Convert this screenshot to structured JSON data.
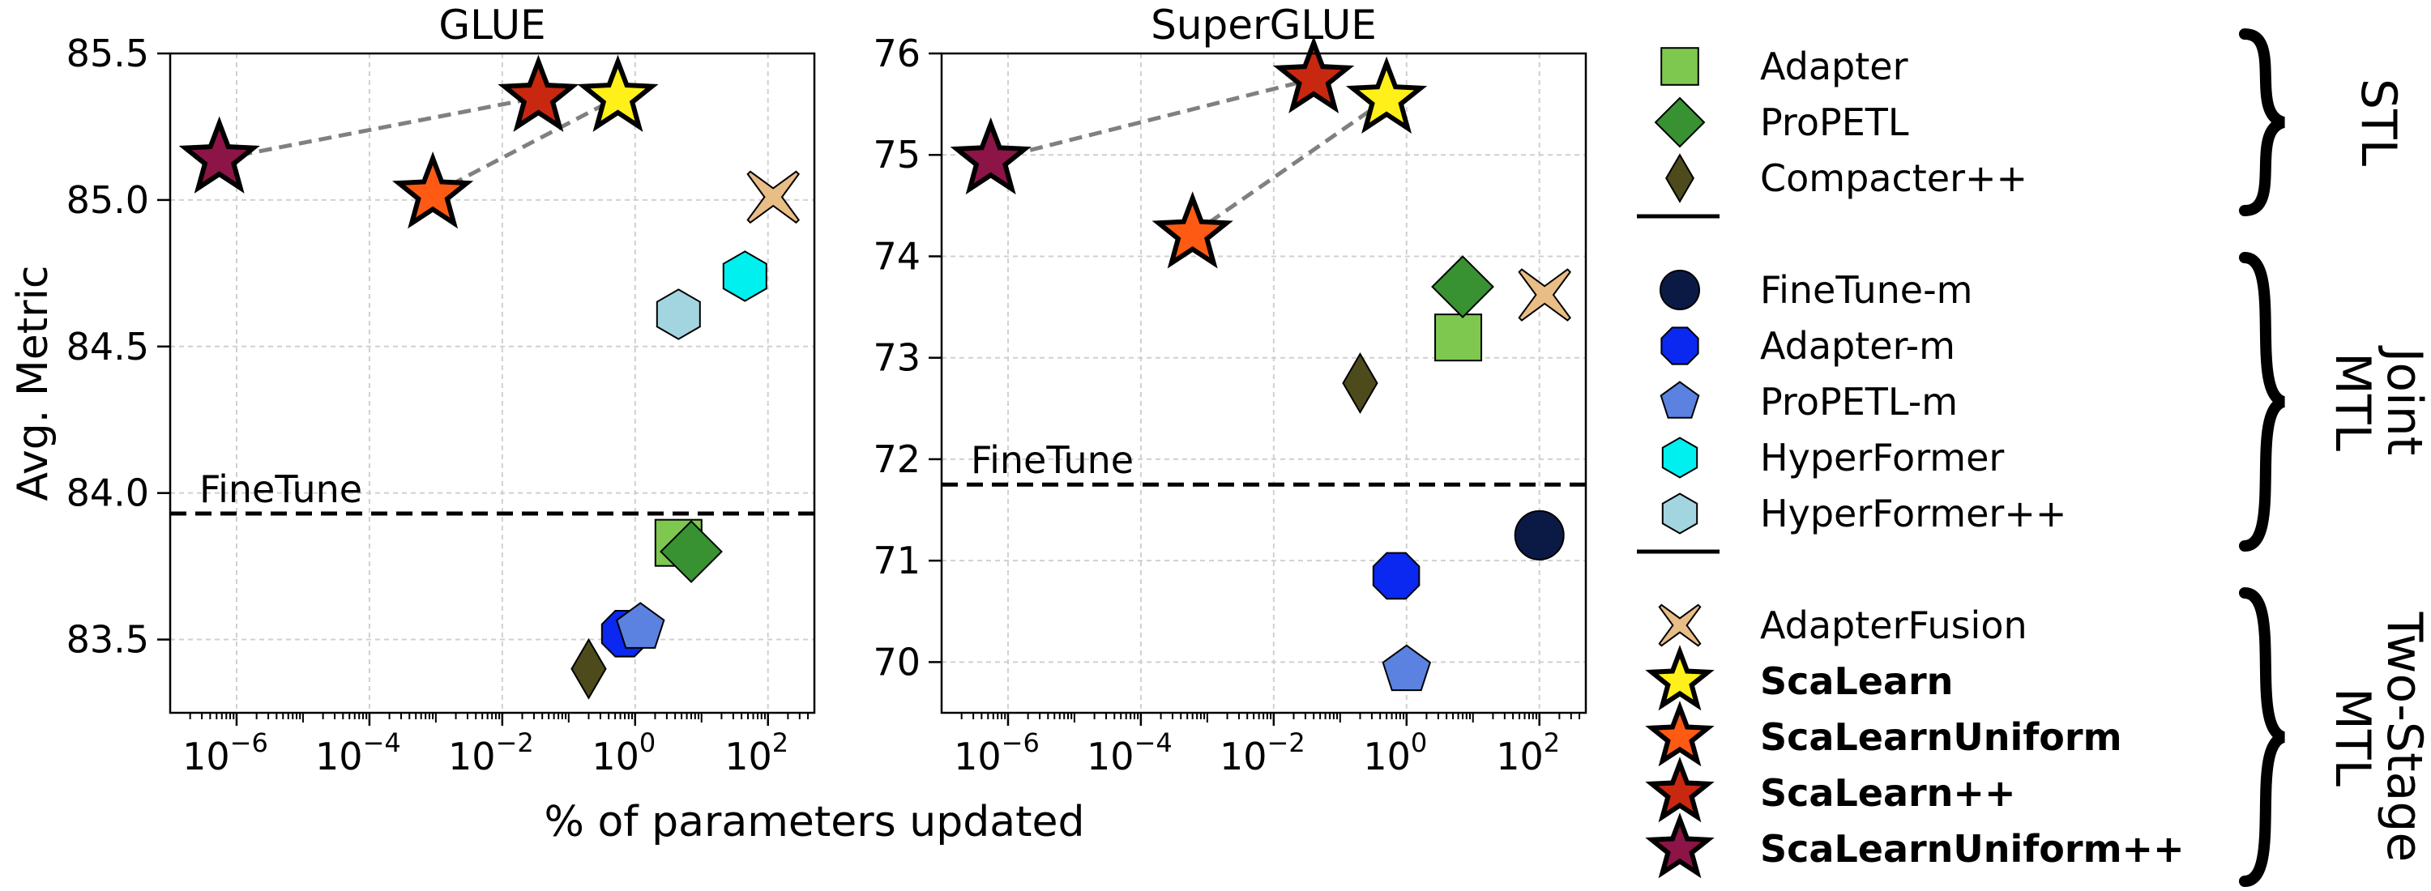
{
  "chart_data": [
    {
      "type": "scatter",
      "title": "GLUE",
      "xlabel": "% of parameters updated",
      "ylabel": "Avg. Metric",
      "xscale": "log",
      "xlim": [
        1e-07,
        500
      ],
      "ylim": [
        83.25,
        85.5
      ],
      "xticks": [
        {
          "value": 1e-06,
          "base": "10",
          "exp": "−6"
        },
        {
          "value": 0.0001,
          "base": "10",
          "exp": "−4"
        },
        {
          "value": 0.01,
          "base": "10",
          "exp": "−2"
        },
        {
          "value": 1,
          "base": "10",
          "exp": "0"
        },
        {
          "value": 100,
          "base": "10",
          "exp": "2"
        }
      ],
      "yticks": [
        {
          "value": 83.5,
          "label": "83.5"
        },
        {
          "value": 84.0,
          "label": "84.0"
        },
        {
          "value": 84.5,
          "label": "84.5"
        },
        {
          "value": 85.0,
          "label": "85.0"
        },
        {
          "value": 85.5,
          "label": "85.5"
        }
      ],
      "grid": true,
      "reference_line": {
        "label": "FineTune",
        "y": 83.93,
        "style": "dashed"
      },
      "connectors": [
        {
          "from": [
            5.5e-07,
            85.14
          ],
          "to": [
            0.035,
            85.35
          ]
        },
        {
          "from": [
            0.0009,
            85.02
          ],
          "to": [
            0.55,
            85.35
          ]
        }
      ],
      "points": [
        {
          "series": "Adapter",
          "x": 4.5,
          "y": 83.83
        },
        {
          "series": "ProPETL",
          "x": 7.0,
          "y": 83.8
        },
        {
          "series": "Compacter++",
          "x": 0.2,
          "y": 83.4
        },
        {
          "series": "Adapter-m",
          "x": 0.7,
          "y": 83.52
        },
        {
          "series": "ProPETL-m",
          "x": 1.2,
          "y": 83.54
        },
        {
          "series": "HyperFormer",
          "x": 45,
          "y": 84.74
        },
        {
          "series": "HyperFormer++",
          "x": 4.5,
          "y": 84.61
        },
        {
          "series": "AdapterFusion",
          "x": 120,
          "y": 85.01
        },
        {
          "series": "ScaLearn",
          "x": 0.55,
          "y": 85.35
        },
        {
          "series": "ScaLearnUniform",
          "x": 0.0009,
          "y": 85.02
        },
        {
          "series": "ScaLearn++",
          "x": 0.035,
          "y": 85.35
        },
        {
          "series": "ScaLearnUniform++",
          "x": 5.5e-07,
          "y": 85.14
        }
      ]
    },
    {
      "type": "scatter",
      "title": "SuperGLUE",
      "xlabel": "% of parameters updated",
      "ylabel": "",
      "xscale": "log",
      "xlim": [
        1e-07,
        500
      ],
      "ylim": [
        69.5,
        76.0
      ],
      "xticks": [
        {
          "value": 1e-06,
          "base": "10",
          "exp": "−6"
        },
        {
          "value": 0.0001,
          "base": "10",
          "exp": "−4"
        },
        {
          "value": 0.01,
          "base": "10",
          "exp": "−2"
        },
        {
          "value": 1,
          "base": "10",
          "exp": "0"
        },
        {
          "value": 100,
          "base": "10",
          "exp": "2"
        }
      ],
      "yticks": [
        {
          "value": 70,
          "label": "70"
        },
        {
          "value": 71,
          "label": "71"
        },
        {
          "value": 72,
          "label": "72"
        },
        {
          "value": 73,
          "label": "73"
        },
        {
          "value": 74,
          "label": "74"
        },
        {
          "value": 75,
          "label": "75"
        },
        {
          "value": 76,
          "label": "76"
        }
      ],
      "grid": true,
      "reference_line": {
        "label": "FineTune",
        "y": 71.75,
        "style": "dashed"
      },
      "connectors": [
        {
          "from": [
            5.5e-07,
            74.95
          ],
          "to": [
            0.04,
            75.75
          ]
        },
        {
          "from": [
            0.0006,
            74.22
          ],
          "to": [
            0.5,
            75.55
          ]
        }
      ],
      "points": [
        {
          "series": "Adapter",
          "x": 6.0,
          "y": 73.2
        },
        {
          "series": "ProPETL",
          "x": 7.0,
          "y": 73.7
        },
        {
          "series": "Compacter++",
          "x": 0.2,
          "y": 72.75
        },
        {
          "series": "FineTune-m",
          "x": 100,
          "y": 71.25
        },
        {
          "series": "Adapter-m",
          "x": 0.7,
          "y": 70.85
        },
        {
          "series": "ProPETL-m",
          "x": 1.0,
          "y": 69.92
        },
        {
          "series": "AdapterFusion",
          "x": 120,
          "y": 73.62
        },
        {
          "series": "ScaLearn",
          "x": 0.5,
          "y": 75.55
        },
        {
          "series": "ScaLearnUniform",
          "x": 0.0006,
          "y": 74.22
        },
        {
          "series": "ScaLearn++",
          "x": 0.04,
          "y": 75.75
        },
        {
          "series": "ScaLearnUniform++",
          "x": 5.5e-07,
          "y": 74.95
        }
      ]
    }
  ],
  "legend": {
    "placement": "right",
    "groups": [
      {
        "label": "STL",
        "lines": [
          "STL"
        ],
        "items": [
          {
            "name": "Adapter",
            "marker": "square",
            "color": "#7ec850",
            "bold": false
          },
          {
            "name": "ProPETL",
            "marker": "diamond",
            "color": "#389232",
            "bold": false
          },
          {
            "name": "Compacter++",
            "marker": "thin-diamond",
            "color": "#4d4a1c",
            "bold": false
          }
        ]
      },
      {
        "label": "Joint MTL",
        "lines": [
          "Joint",
          "MTL"
        ],
        "items": [
          {
            "name": "FineTune-m",
            "marker": "circle",
            "color": "#0b1a45",
            "bold": false
          },
          {
            "name": "Adapter-m",
            "marker": "octagon",
            "color": "#0a28f0",
            "bold": false
          },
          {
            "name": "ProPETL-m",
            "marker": "pentagon",
            "color": "#5b82e0",
            "bold": false
          },
          {
            "name": "HyperFormer",
            "marker": "hexagon",
            "color": "#00f0f0",
            "bold": false
          },
          {
            "name": "HyperFormer++",
            "marker": "hexagon",
            "color": "#a3d5e0",
            "bold": false
          }
        ]
      },
      {
        "label": "Two-Stage MTL",
        "lines": [
          "Two-Stage",
          "MTL"
        ],
        "items": [
          {
            "name": "AdapterFusion",
            "marker": "x",
            "color": "#e8bd86",
            "bold": false
          },
          {
            "name": "ScaLearn",
            "marker": "star",
            "color": "#fff01a",
            "bold": true
          },
          {
            "name": "ScaLearnUniform",
            "marker": "star",
            "color": "#ff5a14",
            "bold": true
          },
          {
            "name": "ScaLearn++",
            "marker": "star",
            "color": "#c8280f",
            "bold": true
          },
          {
            "name": "ScaLearnUniform++",
            "marker": "star",
            "color": "#8c1446",
            "bold": true
          }
        ]
      }
    ]
  }
}
